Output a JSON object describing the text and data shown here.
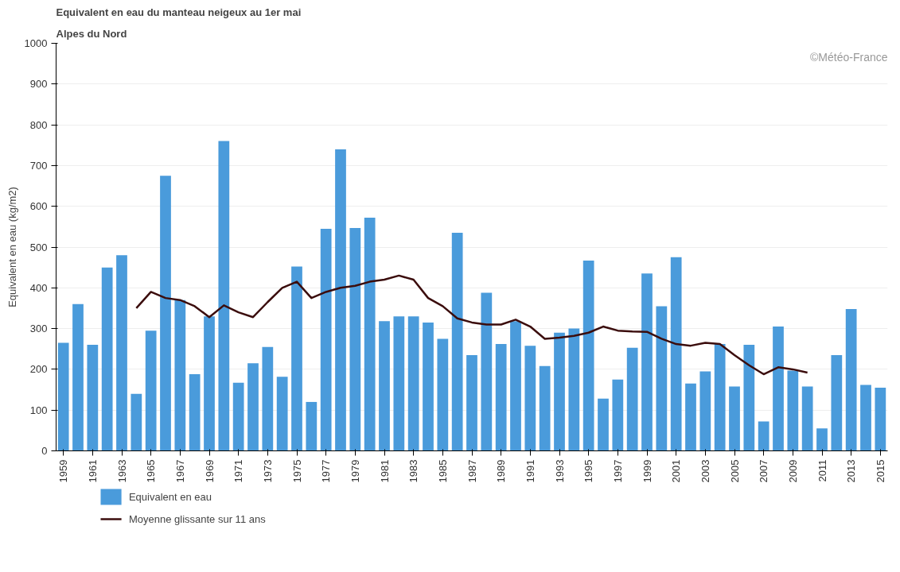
{
  "chart_data": {
    "type": "bar",
    "title": "Equivalent en eau du manteau neigeux au 1er mai",
    "subtitle": "Alpes du Nord",
    "ylabel": "Equivalent en eau (kg/m2)",
    "annotations": [
      "©Météo-France"
    ],
    "x": [
      1959,
      1960,
      1961,
      1962,
      1963,
      1964,
      1965,
      1966,
      1967,
      1968,
      1969,
      1970,
      1971,
      1972,
      1973,
      1974,
      1975,
      1976,
      1977,
      1978,
      1979,
      1980,
      1981,
      1982,
      1983,
      1984,
      1985,
      1986,
      1987,
      1988,
      1989,
      1990,
      1991,
      1992,
      1993,
      1994,
      1995,
      1996,
      1997,
      1998,
      1999,
      2000,
      2001,
      2002,
      2003,
      2004,
      2005,
      2006,
      2007,
      2008,
      2009,
      2010,
      2011,
      2012,
      2013,
      2014,
      2015
    ],
    "series": [
      {
        "name": "Equivalent en eau",
        "color": "#4a9bdb",
        "values": [
          265,
          360,
          260,
          450,
          480,
          140,
          295,
          675,
          370,
          188,
          330,
          760,
          167,
          215,
          255,
          182,
          452,
          120,
          545,
          740,
          547,
          572,
          318,
          330,
          330,
          315,
          275,
          535,
          235,
          388,
          262,
          318,
          258,
          208,
          290,
          300,
          467,
          128,
          175,
          253,
          435,
          355,
          475,
          165,
          195,
          262,
          158,
          260,
          72,
          305,
          197,
          158,
          55,
          235,
          348,
          162,
          155
        ]
      },
      {
        "name": "Moyenne glissante sur 11 ans",
        "type": "line",
        "color": "#3b0d0d",
        "x": [
          1964,
          1965,
          1966,
          1967,
          1968,
          1969,
          1970,
          1971,
          1972,
          1973,
          1974,
          1975,
          1976,
          1977,
          1978,
          1979,
          1980,
          1981,
          1982,
          1983,
          1984,
          1985,
          1986,
          1987,
          1988,
          1989,
          1990,
          1991,
          1992,
          1993,
          1994,
          1995,
          1996,
          1997,
          1998,
          1999,
          2000,
          2001,
          2002,
          2003,
          2004,
          2005,
          2006,
          2007,
          2008,
          2009,
          2010
        ],
        "values": [
          350,
          390,
          375,
          370,
          355,
          328,
          357,
          340,
          328,
          365,
          400,
          415,
          375,
          390,
          400,
          405,
          415,
          420,
          430,
          420,
          375,
          355,
          325,
          315,
          310,
          310,
          322,
          305,
          275,
          278,
          282,
          290,
          305,
          295,
          293,
          292,
          275,
          262,
          258,
          265,
          262,
          235,
          210,
          188,
          205,
          200,
          192
        ]
      }
    ],
    "xlim": [
      1958.5,
      2015.5
    ],
    "xticks": [
      1959,
      1961,
      1963,
      1965,
      1967,
      1969,
      1971,
      1973,
      1975,
      1977,
      1979,
      1981,
      1983,
      1985,
      1987,
      1989,
      1991,
      1993,
      1995,
      1997,
      1999,
      2001,
      2003,
      2005,
      2007,
      2009,
      2011,
      2013,
      2015
    ],
    "ylim": [
      0,
      1000
    ],
    "yticks": [
      0,
      100,
      200,
      300,
      400,
      500,
      600,
      700,
      800,
      900,
      1000
    ],
    "grid": "y",
    "legend": "bottom left",
    "line_style": "solid",
    "marker": "none"
  }
}
